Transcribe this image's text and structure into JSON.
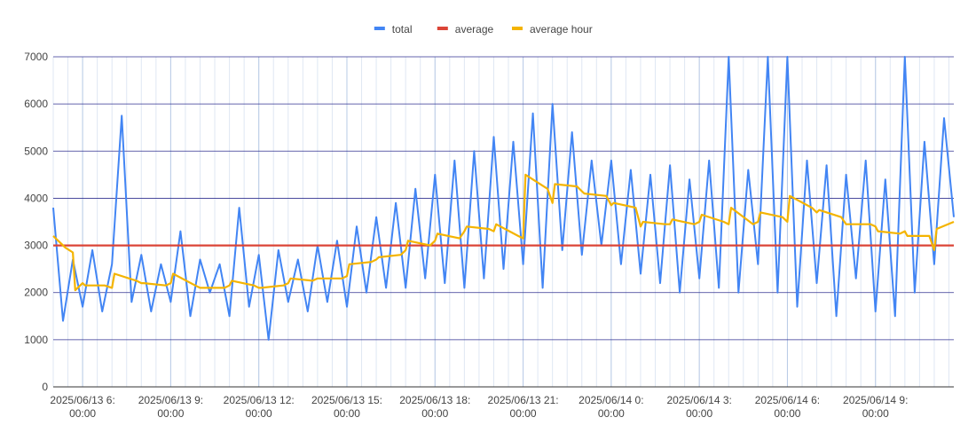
{
  "chart_data": {
    "type": "line",
    "title": "",
    "xlabel": "",
    "ylabel": "",
    "ylim": [
      0,
      7000
    ],
    "yticks": [
      0,
      1000,
      2000,
      3000,
      4000,
      5000,
      6000,
      7000
    ],
    "x_range": [
      "2025-06-13T05:00",
      "2025-06-14T11:40"
    ],
    "x_ticks": [
      {
        "x": "2025-06-13T06:00",
        "line1": "2025/06/13 6:",
        "line2": "00:00"
      },
      {
        "x": "2025-06-13T09:00",
        "line1": "2025/06/13 9:",
        "line2": "00:00"
      },
      {
        "x": "2025-06-13T12:00",
        "line1": "2025/06/13 12:",
        "line2": "00:00"
      },
      {
        "x": "2025-06-13T15:00",
        "line1": "2025/06/13 15:",
        "line2": "00:00"
      },
      {
        "x": "2025-06-13T18:00",
        "line1": "2025/06/13 18:",
        "line2": "00:00"
      },
      {
        "x": "2025-06-13T21:00",
        "line1": "2025/06/13 21:",
        "line2": "00:00"
      },
      {
        "x": "2025-06-14T00:00",
        "line1": "2025/06/14 0:",
        "line2": "00:00"
      },
      {
        "x": "2025-06-14T03:00",
        "line1": "2025/06/14 3:",
        "line2": "00:00"
      },
      {
        "x": "2025-06-14T06:00",
        "line1": "2025/06/14 6:",
        "line2": "00:00"
      },
      {
        "x": "2025-06-14T09:00",
        "line1": "2025/06/14 9:",
        "line2": "00:00"
      }
    ],
    "grid": true,
    "legend_position": "top",
    "series": [
      {
        "name": "total",
        "color": "#4285f4",
        "x": [
          "2025-06-13T05:00",
          "2025-06-13T05:20",
          "2025-06-13T05:40",
          "2025-06-13T06:00",
          "2025-06-13T06:20",
          "2025-06-13T06:40",
          "2025-06-13T07:00",
          "2025-06-13T07:20",
          "2025-06-13T07:40",
          "2025-06-13T08:00",
          "2025-06-13T08:20",
          "2025-06-13T08:40",
          "2025-06-13T09:00",
          "2025-06-13T09:20",
          "2025-06-13T09:40",
          "2025-06-13T10:00",
          "2025-06-13T10:20",
          "2025-06-13T10:40",
          "2025-06-13T11:00",
          "2025-06-13T11:20",
          "2025-06-13T11:40",
          "2025-06-13T12:00",
          "2025-06-13T12:20",
          "2025-06-13T12:40",
          "2025-06-13T13:00",
          "2025-06-13T13:20",
          "2025-06-13T13:40",
          "2025-06-13T14:00",
          "2025-06-13T14:20",
          "2025-06-13T14:40",
          "2025-06-13T15:00",
          "2025-06-13T15:20",
          "2025-06-13T15:40",
          "2025-06-13T16:00",
          "2025-06-13T16:20",
          "2025-06-13T16:40",
          "2025-06-13T17:00",
          "2025-06-13T17:20",
          "2025-06-13T17:40",
          "2025-06-13T18:00",
          "2025-06-13T18:20",
          "2025-06-13T18:40",
          "2025-06-13T19:00",
          "2025-06-13T19:20",
          "2025-06-13T19:40",
          "2025-06-13T20:00",
          "2025-06-13T20:20",
          "2025-06-13T20:40",
          "2025-06-13T21:00",
          "2025-06-13T21:20",
          "2025-06-13T21:40",
          "2025-06-13T22:00",
          "2025-06-13T22:20",
          "2025-06-13T22:40",
          "2025-06-13T23:00",
          "2025-06-13T23:20",
          "2025-06-13T23:40",
          "2025-06-14T00:00",
          "2025-06-14T00:20",
          "2025-06-14T00:40",
          "2025-06-14T01:00",
          "2025-06-14T01:20",
          "2025-06-14T01:40",
          "2025-06-14T02:00",
          "2025-06-14T02:20",
          "2025-06-14T02:40",
          "2025-06-14T03:00",
          "2025-06-14T03:20",
          "2025-06-14T03:40",
          "2025-06-14T04:00",
          "2025-06-14T04:20",
          "2025-06-14T04:40",
          "2025-06-14T05:00",
          "2025-06-14T05:20",
          "2025-06-14T05:40",
          "2025-06-14T06:00",
          "2025-06-14T06:20",
          "2025-06-14T06:40",
          "2025-06-14T07:00",
          "2025-06-14T07:20",
          "2025-06-14T07:40",
          "2025-06-14T08:00",
          "2025-06-14T08:20",
          "2025-06-14T08:40",
          "2025-06-14T09:00",
          "2025-06-14T09:20",
          "2025-06-14T09:40",
          "2025-06-14T10:00",
          "2025-06-14T10:20",
          "2025-06-14T10:40",
          "2025-06-14T11:00",
          "2025-06-14T11:20",
          "2025-06-14T11:40"
        ],
        "values": [
          3800,
          1400,
          2700,
          1700,
          2900,
          1600,
          2600,
          5750,
          1800,
          2800,
          1600,
          2600,
          1800,
          3300,
          1500,
          2700,
          2000,
          2600,
          1500,
          3800,
          1700,
          2800,
          1000,
          2900,
          1800,
          2700,
          1600,
          3000,
          1800,
          3100,
          1700,
          3400,
          2000,
          3600,
          2100,
          3900,
          2100,
          4200,
          2300,
          4500,
          2200,
          4800,
          2100,
          5000,
          2300,
          5300,
          2500,
          5200,
          2600,
          5800,
          2100,
          6000,
          2900,
          5400,
          2800,
          4800,
          3000,
          4800,
          2600,
          4600,
          2400,
          4500,
          2200,
          4700,
          2000,
          4400,
          2300,
          4800,
          2100,
          7000,
          2000,
          4600,
          2600,
          7000,
          2000,
          7000,
          1700,
          4800,
          2200,
          4700,
          1500,
          4500,
          2300,
          4800,
          1600,
          4400,
          1500,
          7000,
          2000,
          5200,
          2600,
          5700,
          3600
        ]
      },
      {
        "name": "average",
        "color": "#db4437",
        "x": [
          "2025-06-13T05:00",
          "2025-06-14T11:40"
        ],
        "values": [
          3000,
          3000
        ]
      },
      {
        "name": "average hour",
        "color": "#f4b400",
        "x": [
          "2025-06-13T05:00",
          "2025-06-13T05:25",
          "2025-06-13T05:40",
          "2025-06-13T05:45",
          "2025-06-13T06:00",
          "2025-06-13T06:05",
          "2025-06-13T06:45",
          "2025-06-13T07:00",
          "2025-06-13T07:05",
          "2025-06-13T07:50",
          "2025-06-13T08:00",
          "2025-06-13T08:05",
          "2025-06-13T08:50",
          "2025-06-13T09:00",
          "2025-06-13T09:05",
          "2025-06-13T09:50",
          "2025-06-13T10:00",
          "2025-06-13T10:05",
          "2025-06-13T10:50",
          "2025-06-13T11:00",
          "2025-06-13T11:05",
          "2025-06-13T11:50",
          "2025-06-13T12:00",
          "2025-06-13T12:05",
          "2025-06-13T12:50",
          "2025-06-13T13:00",
          "2025-06-13T13:05",
          "2025-06-13T13:50",
          "2025-06-13T14:00",
          "2025-06-13T14:05",
          "2025-06-13T14:50",
          "2025-06-13T15:00",
          "2025-06-13T15:05",
          "2025-06-13T15:50",
          "2025-06-13T16:00",
          "2025-06-13T16:05",
          "2025-06-13T16:50",
          "2025-06-13T17:00",
          "2025-06-13T17:05",
          "2025-06-13T17:50",
          "2025-06-13T18:00",
          "2025-06-13T18:05",
          "2025-06-13T18:50",
          "2025-06-13T19:00",
          "2025-06-13T19:05",
          "2025-06-13T19:50",
          "2025-06-13T20:00",
          "2025-06-13T20:05",
          "2025-06-13T20:50",
          "2025-06-13T21:00",
          "2025-06-13T21:05",
          "2025-06-13T21:50",
          "2025-06-13T22:00",
          "2025-06-13T22:05",
          "2025-06-13T22:50",
          "2025-06-13T23:00",
          "2025-06-13T23:05",
          "2025-06-13T23:50",
          "2025-06-14T00:00",
          "2025-06-14T00:05",
          "2025-06-14T00:50",
          "2025-06-14T01:00",
          "2025-06-14T01:05",
          "2025-06-14T01:50",
          "2025-06-14T02:00",
          "2025-06-14T02:05",
          "2025-06-14T02:50",
          "2025-06-14T03:00",
          "2025-06-14T03:05",
          "2025-06-14T03:50",
          "2025-06-14T04:00",
          "2025-06-14T04:05",
          "2025-06-14T04:50",
          "2025-06-14T05:00",
          "2025-06-14T05:05",
          "2025-06-14T05:50",
          "2025-06-14T06:00",
          "2025-06-14T06:05",
          "2025-06-14T06:50",
          "2025-06-14T07:00",
          "2025-06-14T07:05",
          "2025-06-14T07:50",
          "2025-06-14T08:00",
          "2025-06-14T08:05",
          "2025-06-14T08:50",
          "2025-06-14T09:00",
          "2025-06-14T09:05",
          "2025-06-14T09:50",
          "2025-06-14T10:00",
          "2025-06-14T10:05",
          "2025-06-14T10:50",
          "2025-06-14T11:00",
          "2025-06-14T11:05",
          "2025-06-14T11:40"
        ],
        "values": [
          3200,
          2950,
          2850,
          2050,
          2200,
          2150,
          2150,
          2100,
          2400,
          2250,
          2200,
          2200,
          2150,
          2200,
          2400,
          2150,
          2100,
          2100,
          2100,
          2150,
          2250,
          2150,
          2100,
          2100,
          2150,
          2200,
          2300,
          2250,
          2300,
          2300,
          2300,
          2350,
          2600,
          2650,
          2700,
          2750,
          2800,
          2900,
          3100,
          3000,
          3100,
          3250,
          3150,
          3300,
          3400,
          3350,
          3300,
          3450,
          3200,
          3150,
          4500,
          4200,
          3900,
          4300,
          4250,
          4150,
          4100,
          4050,
          3850,
          3900,
          3800,
          3400,
          3500,
          3450,
          3450,
          3550,
          3450,
          3500,
          3650,
          3500,
          3450,
          3800,
          3450,
          3500,
          3700,
          3600,
          3500,
          4050,
          3800,
          3700,
          3750,
          3600,
          3450,
          3450,
          3450,
          3400,
          3300,
          3250,
          3300,
          3200,
          3200,
          2900,
          3350,
          3500
        ]
      }
    ]
  }
}
